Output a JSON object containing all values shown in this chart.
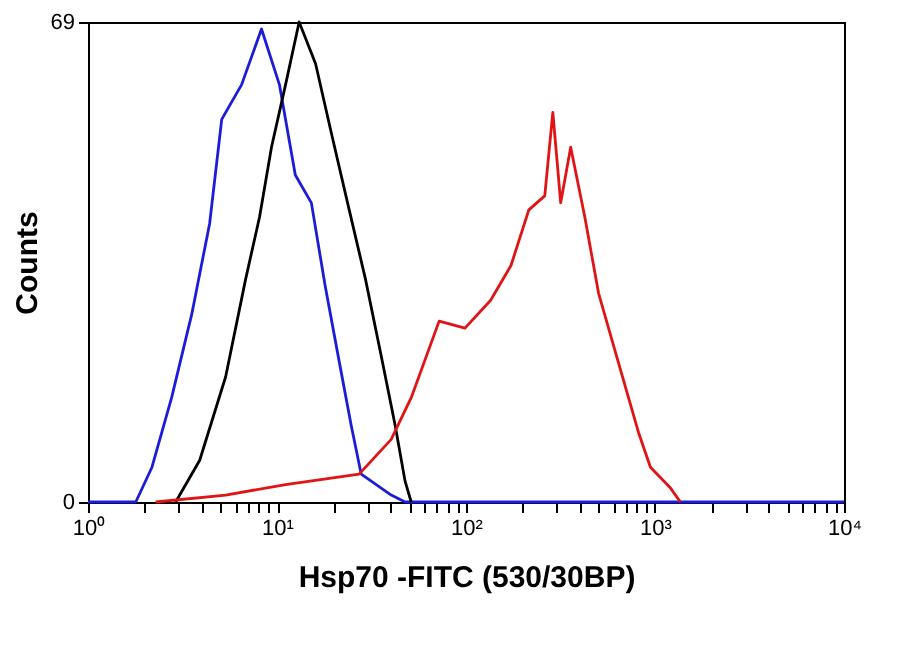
{
  "chart_data": {
    "type": "line",
    "xlabel": "Hsp70 -FITC (530/30BP)",
    "ylabel": "Counts",
    "log": "x",
    "xlim": [
      1,
      10000
    ],
    "ylim": [
      0,
      69
    ],
    "xticks": [
      {
        "value": 1,
        "label": "10⁰"
      },
      {
        "value": 2,
        "label": null
      },
      {
        "value": 3,
        "label": null
      },
      {
        "value": 4,
        "label": null
      },
      {
        "value": 5,
        "label": null
      },
      {
        "value": 6,
        "label": null
      },
      {
        "value": 7,
        "label": null
      },
      {
        "value": 8,
        "label": null
      },
      {
        "value": 9,
        "label": null
      },
      {
        "value": 10,
        "label": "10¹"
      },
      {
        "value": 20,
        "label": null
      },
      {
        "value": 30,
        "label": null
      },
      {
        "value": 40,
        "label": null
      },
      {
        "value": 50,
        "label": null
      },
      {
        "value": 60,
        "label": null
      },
      {
        "value": 70,
        "label": null
      },
      {
        "value": 80,
        "label": null
      },
      {
        "value": 90,
        "label": null
      },
      {
        "value": 100,
        "label": "10²"
      },
      {
        "value": 200,
        "label": null
      },
      {
        "value": 300,
        "label": null
      },
      {
        "value": 400,
        "label": null
      },
      {
        "value": 500,
        "label": null
      },
      {
        "value": 600,
        "label": null
      },
      {
        "value": 700,
        "label": null
      },
      {
        "value": 800,
        "label": null
      },
      {
        "value": 900,
        "label": null
      },
      {
        "value": 1000,
        "label": "10³"
      },
      {
        "value": 2000,
        "label": null
      },
      {
        "value": 3000,
        "label": null
      },
      {
        "value": 4000,
        "label": null
      },
      {
        "value": 5000,
        "label": null
      },
      {
        "value": 6000,
        "label": null
      },
      {
        "value": 7000,
        "label": null
      },
      {
        "value": 8000,
        "label": null
      },
      {
        "value": 9000,
        "label": null
      },
      {
        "value": 10000,
        "label": "10⁴"
      }
    ],
    "yticks": [
      0,
      69
    ],
    "grid": false,
    "legend": false,
    "marker": "none",
    "line_style": "solid",
    "series": [
      {
        "color": "#1c1cd8",
        "x": [
          1,
          1.79,
          2.18,
          2.77,
          3.54,
          4.4,
          5.1,
          6.5,
          8.28,
          10.3,
          12.5,
          15.2,
          18,
          21.4,
          24.7,
          27.9,
          40.2,
          47.6,
          10000
        ],
        "values": [
          0,
          0,
          5,
          15,
          27,
          40,
          55,
          60,
          68,
          60,
          47,
          43,
          31,
          20,
          11,
          4,
          1,
          0,
          0
        ]
      },
      {
        "color": "#000000",
        "x": [
          2.91,
          3.9,
          5.35,
          6.82,
          8.09,
          9.35,
          11.1,
          13.1,
          16,
          19.4,
          24.1,
          29.4,
          35.6,
          42.2,
          47.6,
          51.3
        ],
        "values": [
          0,
          6,
          18,
          32,
          41,
          51,
          60,
          69,
          63,
          53,
          42,
          32,
          21,
          11,
          3,
          0
        ]
      },
      {
        "color": "#e01414",
        "x": [
          2.28,
          5.35,
          11.1,
          27.2,
          40.2,
          51.3,
          72.1,
          98.8,
          135,
          173,
          215,
          261,
          288,
          317,
          358,
          425,
          503,
          641,
          818,
          946,
          1208,
          1363
        ],
        "values": [
          0,
          1,
          2.5,
          4,
          9,
          15,
          26,
          25,
          29,
          34,
          42,
          44,
          56,
          43,
          51,
          41,
          30,
          20,
          10,
          5,
          2,
          0
        ]
      }
    ]
  }
}
